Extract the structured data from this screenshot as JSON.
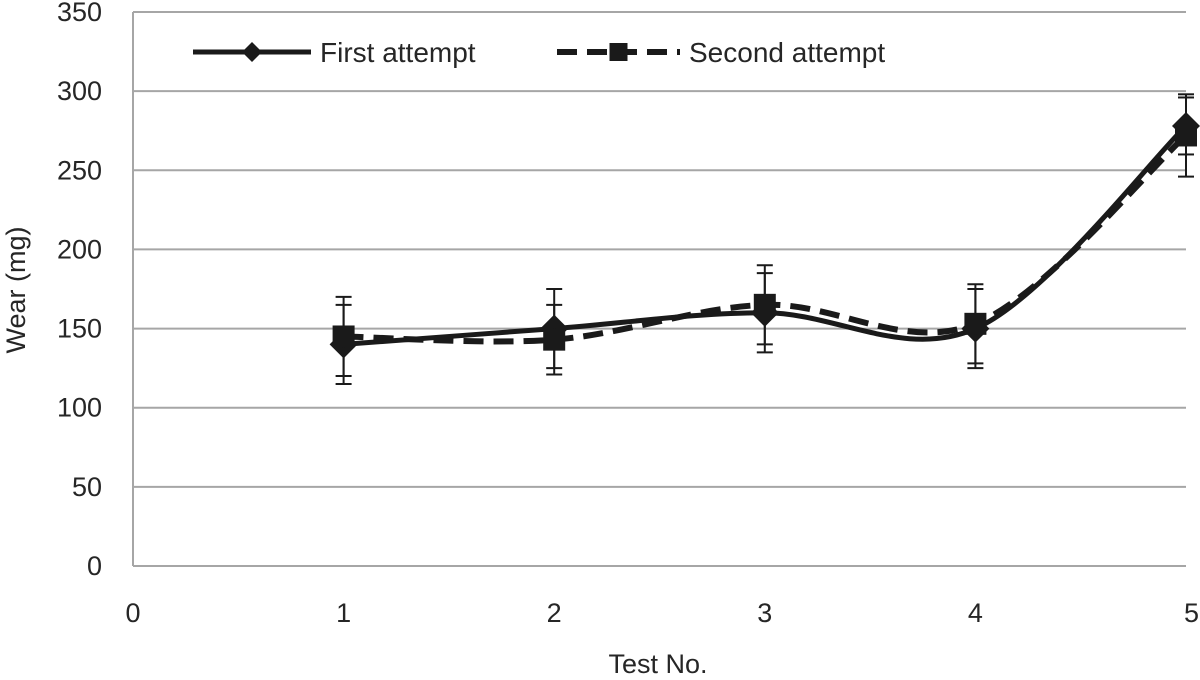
{
  "chart_data": {
    "type": "line",
    "title": "",
    "xlabel": "Test No.",
    "ylabel": "Wear (mg)",
    "xlim": [
      0,
      5
    ],
    "ylim": [
      0,
      350
    ],
    "x_ticks": [
      "0",
      "1",
      "2",
      "3",
      "4",
      "5"
    ],
    "y_ticks": [
      "0",
      "50",
      "100",
      "150",
      "200",
      "250",
      "300",
      "350"
    ],
    "grid": "horizontal",
    "legend_position": "top-left",
    "smooth": true,
    "series": [
      {
        "name": "First attempt",
        "marker": "diamond",
        "line_style": "solid",
        "color": "#1a1a1a",
        "x": [
          1,
          2,
          3,
          4,
          5
        ],
        "values": [
          140,
          150,
          160,
          150,
          278
        ],
        "error": [
          25,
          25,
          25,
          25,
          18
        ]
      },
      {
        "name": "Second attempt",
        "marker": "square",
        "line_style": "dashed",
        "color": "#1a1a1a",
        "x": [
          1,
          2,
          3,
          4,
          5
        ],
        "values": [
          145,
          143,
          165,
          153,
          272
        ],
        "error": [
          25,
          22,
          25,
          25,
          26
        ]
      }
    ]
  }
}
